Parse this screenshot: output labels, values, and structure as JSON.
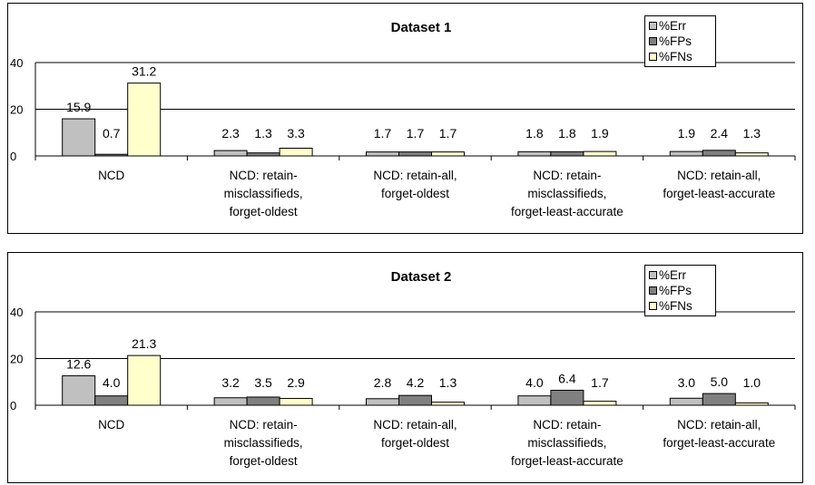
{
  "chart_data": [
    {
      "type": "bar",
      "title": "Dataset 1",
      "categories": [
        [
          "NCD"
        ],
        [
          "NCD: retain-",
          "misclassifieds,",
          "forget-oldest"
        ],
        [
          "NCD: retain-all,",
          "forget-oldest"
        ],
        [
          "NCD: retain-",
          "misclassifieds,",
          "forget-least-accurate"
        ],
        [
          "NCD: retain-all,",
          "forget-least-accurate"
        ]
      ],
      "series": [
        {
          "name": "%Err",
          "color": "#c0c0c0",
          "values": [
            15.9,
            2.3,
            1.7,
            1.8,
            1.9
          ],
          "labels": [
            "15.9",
            "2.3",
            "1.7",
            "1.8",
            "1.9"
          ]
        },
        {
          "name": "%FPs",
          "color": "#808080",
          "values": [
            0.7,
            1.3,
            1.7,
            1.8,
            2.4
          ],
          "labels": [
            "0.7",
            "1.3",
            "1.7",
            "1.8",
            "2.4"
          ]
        },
        {
          "name": "%FNs",
          "color": "#ffffcc",
          "values": [
            31.2,
            3.3,
            1.7,
            1.9,
            1.3
          ],
          "labels": [
            "31.2",
            "3.3",
            "1.7",
            "1.9",
            "1.3"
          ]
        }
      ],
      "ylim": [
        0,
        40
      ],
      "yticks": [
        "0",
        "20",
        "40"
      ],
      "grid": true,
      "legend": "top-right"
    },
    {
      "type": "bar",
      "title": "Dataset 2",
      "categories": [
        [
          "NCD"
        ],
        [
          "NCD: retain-",
          "misclassifieds,",
          "forget-oldest"
        ],
        [
          "NCD: retain-all,",
          "forget-oldest"
        ],
        [
          "NCD: retain-",
          "misclassifieds,",
          "forget-least-accurate"
        ],
        [
          "NCD: retain-all,",
          "forget-least-accurate"
        ]
      ],
      "series": [
        {
          "name": "%Err",
          "color": "#c0c0c0",
          "values": [
            12.6,
            3.2,
            2.8,
            4.0,
            3.0
          ],
          "labels": [
            "12.6",
            "3.2",
            "2.8",
            "4.0",
            "3.0"
          ]
        },
        {
          "name": "%FPs",
          "color": "#808080",
          "values": [
            4.0,
            3.5,
            4.2,
            6.4,
            5.0
          ],
          "labels": [
            "4.0",
            "3.5",
            "4.2",
            "6.4",
            "5.0"
          ]
        },
        {
          "name": "%FNs",
          "color": "#ffffcc",
          "values": [
            21.3,
            2.9,
            1.3,
            1.7,
            1.0
          ],
          "labels": [
            "21.3",
            "2.9",
            "1.3",
            "1.7",
            "1.0"
          ]
        }
      ],
      "ylim": [
        0,
        40
      ],
      "yticks": [
        "0",
        "20",
        "40"
      ],
      "grid": true,
      "legend": "top-right"
    }
  ]
}
